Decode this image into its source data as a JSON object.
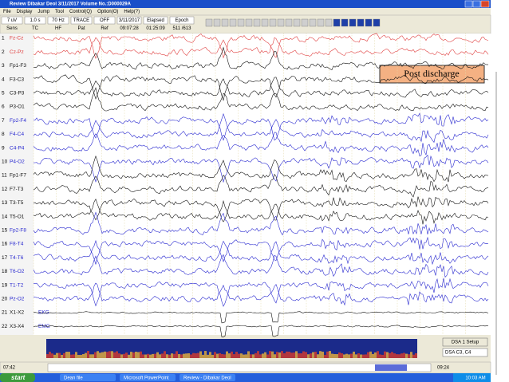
{
  "title_bar": {
    "title": "Review  Dibakar Deol   3/11/2017   Volume No.:D000029A"
  },
  "menu": [
    "File",
    "Display",
    "Jump",
    "Tool",
    "Control(Q)",
    "Option(O)",
    "Help(?)"
  ],
  "toolbar": [
    {
      "value": "7 uV",
      "label": "Sens"
    },
    {
      "value": "1.0 s",
      "label": "TC"
    },
    {
      "value": "70 Hz",
      "label": "HF"
    },
    {
      "value": "TRACE",
      "label": "Pat"
    },
    {
      "value": "OFF",
      "label": "Ref"
    },
    {
      "value": "3/11/2017",
      "label": "09:07:28"
    },
    {
      "value": "Elapsed",
      "label": "01:25:09"
    },
    {
      "value": "Epoch",
      "label": "511 /613"
    }
  ],
  "channels": [
    {
      "number": "1",
      "label": "Fz-Cz"
    },
    {
      "number": "2",
      "label": "Cz-Pz"
    },
    {
      "number": "3",
      "label": "Fp1-F3"
    },
    {
      "number": "4",
      "label": "F3-C3"
    },
    {
      "number": "5",
      "label": "C3-P3"
    },
    {
      "number": "6",
      "label": "P3-O1"
    },
    {
      "number": "7",
      "label": "Fp2-F4"
    },
    {
      "number": "8",
      "label": "F4-C4"
    },
    {
      "number": "9",
      "label": "C4-P4"
    },
    {
      "number": "10",
      "label": "P4-O2"
    },
    {
      "number": "11",
      "label": "Fp1-F7"
    },
    {
      "number": "12",
      "label": "F7-T3"
    },
    {
      "number": "13",
      "label": "T3-T5"
    },
    {
      "number": "14",
      "label": "T5-O1"
    },
    {
      "number": "15",
      "label": "Fp2-F8"
    },
    {
      "number": "16",
      "label": "F8-T4"
    },
    {
      "number": "17",
      "label": "T4-T6"
    },
    {
      "number": "18",
      "label": "T6-O2"
    },
    {
      "number": "19",
      "label": "T1-T2"
    },
    {
      "number": "20",
      "label": "Pz-O2"
    },
    {
      "number": "21",
      "label": "X1-X2",
      "tag": "EKG"
    },
    {
      "number": "22",
      "label": "X3-X4",
      "tag": "EMG"
    }
  ],
  "annotation": "Post discharge",
  "dsa": {
    "setup": "DSA 1 Setup",
    "select": "DSA C3, C4"
  },
  "status": {
    "start_time": "07:42",
    "end_time": "09:24"
  },
  "taskbar": {
    "start": "start",
    "items": [
      "Dean file",
      "Microsoft PowerPoint",
      "Review - Dibakar Deol"
    ],
    "clock": "10:03 AM"
  }
}
